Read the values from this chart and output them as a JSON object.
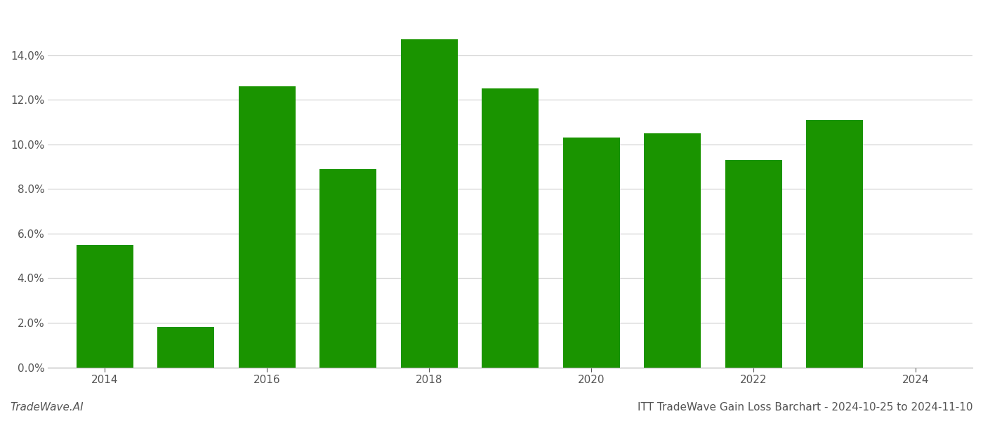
{
  "years": [
    2014,
    2015,
    2016,
    2017,
    2018,
    2019,
    2020,
    2021,
    2022,
    2023
  ],
  "values": [
    0.055,
    0.018,
    0.126,
    0.089,
    0.147,
    0.125,
    0.103,
    0.105,
    0.093,
    0.111
  ],
  "bar_color": "#1a9400",
  "background_color": "#ffffff",
  "grid_color": "#cccccc",
  "title": "ITT TradeWave Gain Loss Barchart - 2024-10-25 to 2024-11-10",
  "watermark": "TradeWave.AI",
  "ylim": [
    0,
    0.16
  ],
  "yticks": [
    0.0,
    0.02,
    0.04,
    0.06,
    0.08,
    0.1,
    0.12,
    0.14
  ],
  "xticks": [
    2014,
    2016,
    2018,
    2020,
    2022,
    2024
  ],
  "xlim": [
    2013.3,
    2024.7
  ],
  "bar_width": 0.7,
  "tick_fontsize": 11,
  "title_fontsize": 11,
  "watermark_fontsize": 11
}
